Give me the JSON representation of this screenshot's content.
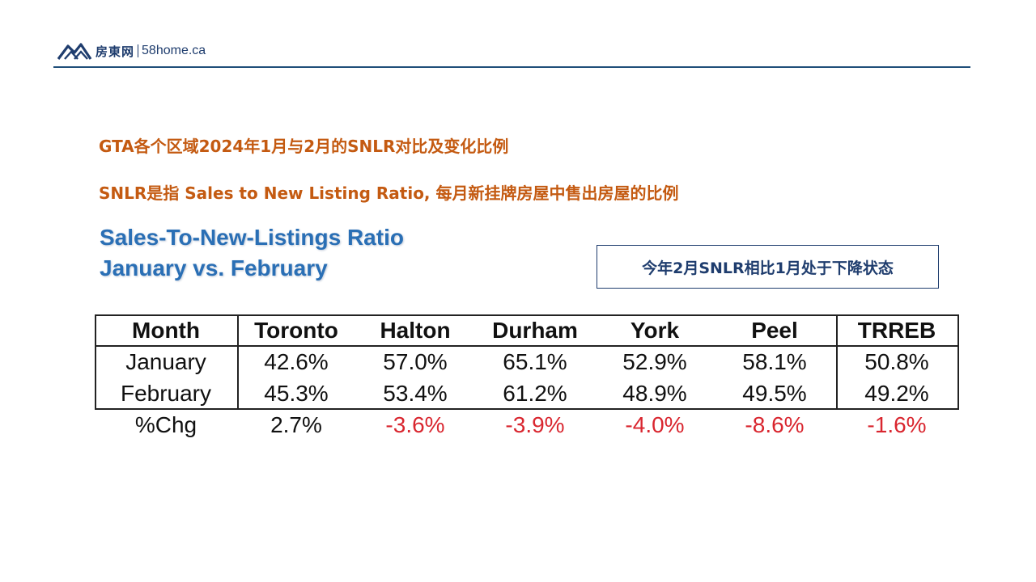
{
  "header": {
    "logo_cn": "房東网",
    "logo_domain": "58home.ca"
  },
  "headings": {
    "line1": "GTA各个区域2024年1月与2月的SNLR对比及变化比例",
    "line2": "SNLR是指 Sales to New Listing Ratio, 每月新挂牌房屋中售出房屋的比例"
  },
  "chart": {
    "title_line1": "Sales-To-New-Listings Ratio",
    "title_line2": "January vs. February"
  },
  "callout": "今年2月SNLR相比1月处于下降状态",
  "colors": {
    "heading": "#c45a11",
    "title_blue": "#2a6fb5",
    "negative": "#d9262f",
    "navy": "#1f3d6e"
  },
  "table": {
    "columns": [
      "Month",
      "Toronto",
      "Halton",
      "Durham",
      "York",
      "Peel",
      "TRREB"
    ],
    "rows": [
      [
        "January",
        "42.6%",
        "57.0%",
        "65.1%",
        "52.9%",
        "58.1%",
        "50.8%"
      ],
      [
        "February",
        "45.3%",
        "53.4%",
        "61.2%",
        "48.9%",
        "49.5%",
        "49.2%"
      ]
    ],
    "change_row": [
      "%Chg",
      "2.7%",
      "-3.6%",
      "-3.9%",
      "-4.0%",
      "-8.6%",
      "-1.6%"
    ]
  },
  "chart_data": {
    "type": "table",
    "columns": [
      "Month",
      "Toronto",
      "Halton",
      "Durham",
      "York",
      "Peel",
      "TRREB"
    ],
    "rows": [
      {
        "label": "January",
        "values": [
          42.6,
          57.0,
          65.1,
          52.9,
          58.1,
          50.8
        ]
      },
      {
        "label": "February",
        "values": [
          45.3,
          53.4,
          61.2,
          48.9,
          49.5,
          49.2
        ]
      },
      {
        "label": "%Chg",
        "values": [
          2.7,
          -3.6,
          -3.9,
          -4.0,
          -8.6,
          -1.6
        ]
      }
    ],
    "unit": "%"
  }
}
